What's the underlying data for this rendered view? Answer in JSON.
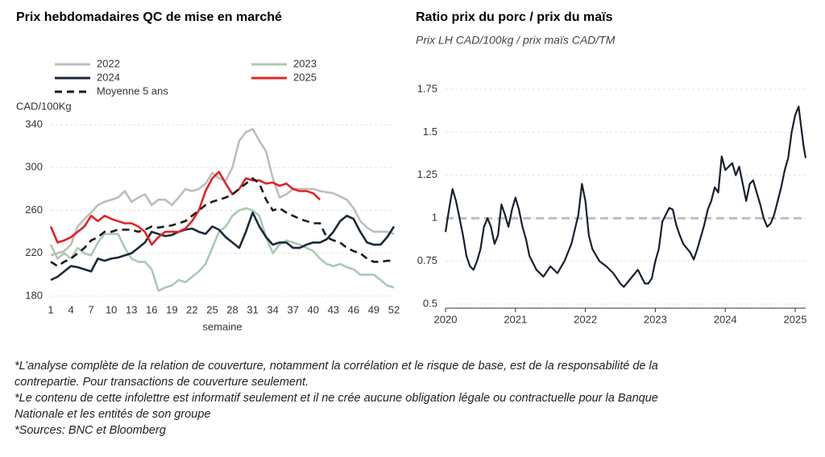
{
  "chart_data": [
    {
      "type": "line",
      "title": "Prix hebdomadaires QC de mise en marché",
      "ylabel": "CAD/100Kg",
      "xlabel": "semaine",
      "x": [
        1,
        2,
        3,
        4,
        5,
        6,
        7,
        8,
        9,
        10,
        11,
        12,
        13,
        14,
        15,
        16,
        17,
        18,
        19,
        20,
        21,
        22,
        23,
        24,
        25,
        26,
        27,
        28,
        29,
        30,
        31,
        32,
        33,
        34,
        35,
        36,
        37,
        38,
        39,
        40,
        41,
        42,
        43,
        44,
        45,
        46,
        47,
        48,
        49,
        50,
        51,
        52
      ],
      "xlim": [
        1,
        52
      ],
      "xticks": [
        1,
        4,
        7,
        10,
        13,
        16,
        19,
        22,
        25,
        28,
        31,
        34,
        37,
        40,
        43,
        46,
        49,
        52
      ],
      "ylim": [
        180,
        340
      ],
      "yticks": [
        180,
        220,
        260,
        300,
        340
      ],
      "grid": true,
      "series": [
        {
          "name": "2022",
          "color": "#bdbdbd",
          "style": "solid",
          "values": [
            218,
            220,
            222,
            228,
            245,
            252,
            258,
            265,
            268,
            270,
            272,
            278,
            268,
            272,
            275,
            265,
            270,
            270,
            265,
            272,
            280,
            278,
            280,
            285,
            295,
            290,
            288,
            300,
            325,
            333,
            336,
            325,
            315,
            290,
            272,
            275,
            280,
            280,
            280,
            280,
            278,
            277,
            276,
            273,
            270,
            262,
            250,
            244,
            240,
            240,
            240,
            238
          ]
        },
        {
          "name": "2023",
          "color": "#a9c9b3",
          "style": "solid",
          "values": [
            228,
            215,
            220,
            215,
            225,
            220,
            218,
            230,
            238,
            238,
            238,
            225,
            215,
            212,
            212,
            205,
            185,
            188,
            190,
            195,
            193,
            198,
            203,
            210,
            225,
            240,
            245,
            255,
            260,
            262,
            260,
            255,
            235,
            220,
            228,
            232,
            230,
            228,
            225,
            222,
            215,
            210,
            208,
            210,
            207,
            205,
            200,
            200,
            200,
            195,
            190,
            188
          ]
        },
        {
          "name": "2024",
          "color": "#1b2838",
          "style": "solid",
          "values": [
            195,
            198,
            203,
            208,
            207,
            205,
            203,
            215,
            213,
            215,
            216,
            218,
            220,
            225,
            230,
            240,
            238,
            236,
            237,
            240,
            242,
            243,
            240,
            238,
            245,
            242,
            235,
            230,
            225,
            240,
            258,
            245,
            235,
            228,
            230,
            230,
            225,
            225,
            228,
            230,
            230,
            233,
            240,
            250,
            255,
            252,
            240,
            230,
            228,
            228,
            235,
            245
          ]
        },
        {
          "name": "2025",
          "color": "#e02424",
          "style": "solid",
          "values": [
            245,
            230,
            232,
            235,
            240,
            245,
            255,
            250,
            255,
            252,
            250,
            248,
            248,
            245,
            240,
            228,
            235,
            240,
            240,
            240,
            243,
            250,
            260,
            278,
            290,
            296,
            285,
            275,
            280,
            290,
            288,
            288,
            285,
            286,
            283,
            285,
            280,
            278,
            278,
            276,
            270,
            null,
            null,
            null,
            null,
            null,
            null,
            null,
            null,
            null,
            null,
            null
          ]
        },
        {
          "name": "Moyenne 5 ans",
          "color": "#1b1b1b",
          "style": "dashed",
          "values": [
            212,
            208,
            212,
            215,
            220,
            225,
            232,
            235,
            240,
            240,
            242,
            242,
            242,
            240,
            242,
            245,
            244,
            245,
            246,
            248,
            250,
            255,
            260,
            265,
            268,
            270,
            272,
            275,
            280,
            285,
            290,
            285,
            270,
            260,
            262,
            258,
            255,
            252,
            250,
            248,
            248,
            235,
            232,
            230,
            225,
            222,
            220,
            215,
            212,
            212,
            213,
            213
          ]
        }
      ]
    },
    {
      "type": "line",
      "title": "Ratio prix du porc / prix du maïs",
      "subtitle": "Prix LH CAD/100kg / prix maïs CAD/TM",
      "x": [
        2020,
        2020.05,
        2020.1,
        2020.15,
        2020.2,
        2020.25,
        2020.3,
        2020.35,
        2020.4,
        2020.45,
        2020.5,
        2020.55,
        2020.6,
        2020.65,
        2020.7,
        2020.75,
        2020.8,
        2020.85,
        2020.9,
        2020.95,
        2021,
        2021.05,
        2021.1,
        2021.15,
        2021.2,
        2021.3,
        2021.4,
        2021.5,
        2021.6,
        2021.7,
        2021.8,
        2021.9,
        2021.95,
        2022,
        2022.05,
        2022.1,
        2022.2,
        2022.3,
        2022.4,
        2022.5,
        2022.55,
        2022.65,
        2022.75,
        2022.85,
        2022.9,
        2022.95,
        2023,
        2023.05,
        2023.1,
        2023.2,
        2023.25,
        2023.3,
        2023.35,
        2023.4,
        2023.5,
        2023.55,
        2023.6,
        2023.7,
        2023.75,
        2023.8,
        2023.85,
        2023.9,
        2023.95,
        2024,
        2024.05,
        2024.1,
        2024.15,
        2024.2,
        2024.25,
        2024.3,
        2024.35,
        2024.4,
        2024.45,
        2024.5,
        2024.55,
        2024.6,
        2024.65,
        2024.7,
        2024.75,
        2024.8,
        2024.85,
        2024.9,
        2024.95,
        2025,
        2025.05,
        2025.08,
        2025.12,
        2025.15
      ],
      "xlim": [
        2020,
        2025.15
      ],
      "xticks": [
        2020,
        2021,
        2022,
        2023,
        2024,
        2025
      ],
      "ylim": [
        0.5,
        1.75
      ],
      "yticks": [
        0.5,
        0.75,
        1,
        1.25,
        1.5,
        1.75
      ],
      "grid": true,
      "reference_line": 1,
      "series": [
        {
          "name": "Ratio",
          "color": "#16202e",
          "style": "solid",
          "values": [
            0.92,
            1.05,
            1.17,
            1.1,
            1.0,
            0.9,
            0.78,
            0.72,
            0.7,
            0.75,
            0.82,
            0.95,
            1.0,
            0.95,
            0.85,
            0.9,
            1.08,
            1.02,
            0.95,
            1.05,
            1.12,
            1.05,
            0.95,
            0.88,
            0.78,
            0.7,
            0.66,
            0.72,
            0.68,
            0.75,
            0.85,
            1.02,
            1.2,
            1.1,
            0.9,
            0.82,
            0.75,
            0.72,
            0.68,
            0.62,
            0.6,
            0.65,
            0.7,
            0.62,
            0.62,
            0.65,
            0.75,
            0.82,
            0.98,
            1.06,
            1.05,
            0.96,
            0.9,
            0.85,
            0.8,
            0.76,
            0.82,
            0.96,
            1.05,
            1.1,
            1.18,
            1.15,
            1.36,
            1.28,
            1.3,
            1.32,
            1.25,
            1.3,
            1.2,
            1.1,
            1.2,
            1.22,
            1.15,
            1.08,
            1.0,
            0.95,
            0.97,
            1.02,
            1.1,
            1.18,
            1.28,
            1.35,
            1.5,
            1.6,
            1.65,
            1.55,
            1.42,
            1.35
          ]
        }
      ]
    }
  ],
  "footnotes": [
    "*L’analyse complète de la relation de couverture, notamment la corrélation et le risque de base, est de la responsabilité de la contrepartie. Pour transactions de couverture seulement.",
    "*Le contenu de cette infolettre est informatif seulement et il ne crée aucune obligation légale ou contractuelle pour la Banque Nationale et les entités de son groupe",
    "*Sources: BNC et Bloomberg"
  ]
}
